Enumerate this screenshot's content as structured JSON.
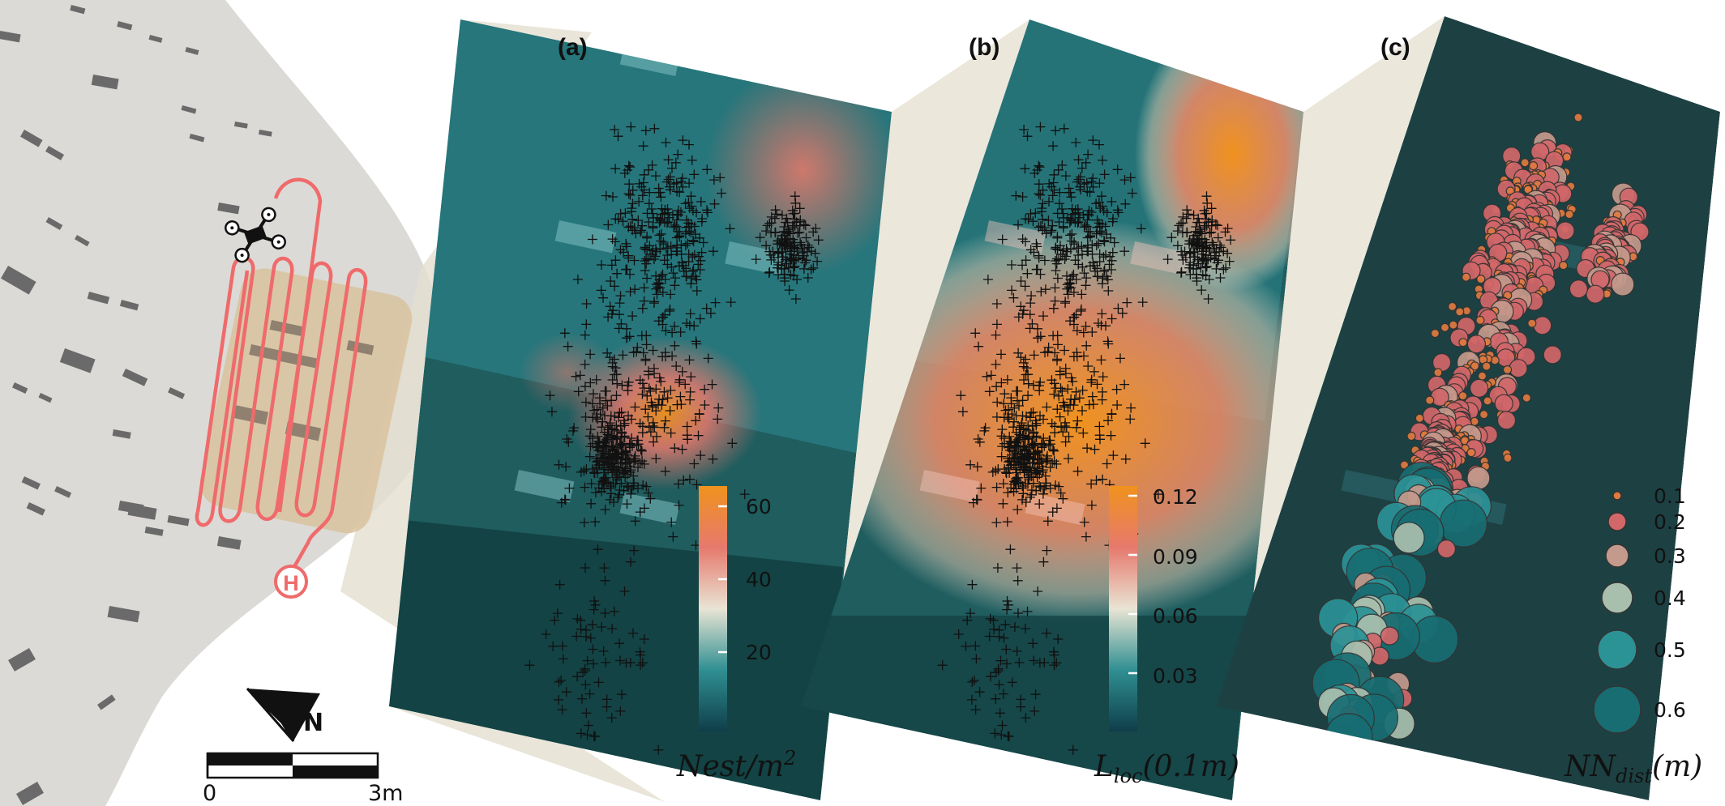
{
  "panels": {
    "a": {
      "letter": "(a)",
      "colorbar_ticks": [
        "60",
        "40",
        "20"
      ],
      "colorbar_title_base": "Nest/m",
      "colorbar_title_sup": "2"
    },
    "b": {
      "letter": "(b)",
      "colorbar_ticks": [
        "0.12",
        "0.09",
        "0.06",
        "0.03"
      ],
      "colorbar_title_base": "L",
      "colorbar_title_sub": "loc",
      "colorbar_title_rest": "(0.1m)"
    },
    "c": {
      "letter": "(c)",
      "legend_sizes": [
        "0.1",
        "0.2",
        "0.3",
        "0.4",
        "0.5",
        "0.6"
      ],
      "legend_title_base": "NN",
      "legend_title_sub": "dist",
      "legend_title_rest": "(m)"
    }
  },
  "scale_bar": {
    "start_label": "0",
    "end_label": "3m"
  },
  "north_arrow": {
    "label": "N"
  },
  "icons": {
    "drone": "drone-icon",
    "home": "home-marker-icon",
    "north": "north-arrow-icon"
  },
  "colors": {
    "flight_path": "#ef6b6b",
    "survey_area": "#d8c09a",
    "terrain": "#dcdad6",
    "low": "#0f4a52",
    "mid": "#e8e3d3",
    "high": "#f0921e",
    "field_dark": "#173a3c"
  }
}
